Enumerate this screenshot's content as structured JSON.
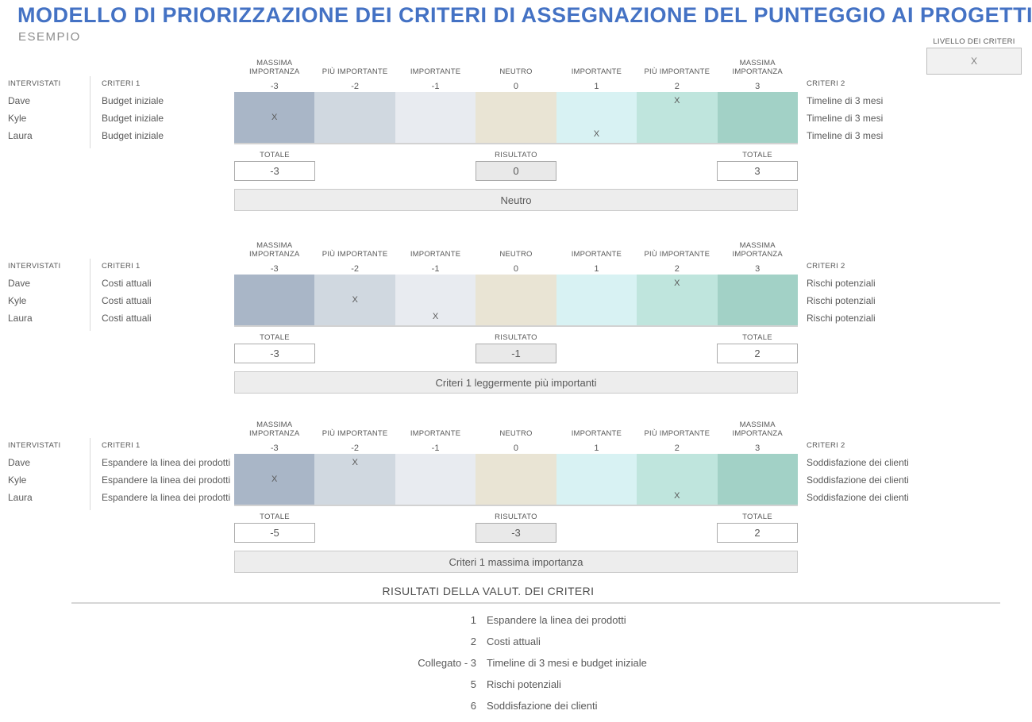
{
  "colors": {
    "accent": "#4472C4",
    "text": "#595959",
    "scale_cells": [
      "#A9B6C7",
      "#D0D8E0",
      "#E8EBF0",
      "#E9E4D4",
      "#D8F2F3",
      "#BFE5DD",
      "#A2D1C6"
    ]
  },
  "header": {
    "title": "MODELLO DI PRIORIZZAZIONE DEI CRITERI DI ASSEGNAZIONE DEL PUNTEGGIO AI PROGETTI",
    "subtitle": "ESEMPIO"
  },
  "criteria_level": {
    "label": "LIVELLO DEI CRITERI",
    "value": "X"
  },
  "scale": {
    "headers": [
      "MASSIMA IMPORTANZA",
      "PIÙ IMPORTANTE",
      "IMPORTANTE",
      "NEUTRO",
      "IMPORTANTE",
      "PIÙ IMPORTANTE",
      "MASSIMA IMPORTANZA"
    ],
    "values": [
      "-3",
      "-2",
      "-1",
      "0",
      "1",
      "2",
      "3"
    ]
  },
  "labels": {
    "interviewees": "INTERVISTATI",
    "criteria1": "CRITERI 1",
    "criteria2": "CRITERI 2",
    "total": "TOTALE",
    "result": "RISULTATO",
    "mark": "X"
  },
  "sections": [
    {
      "rows": [
        {
          "interviewee": "Dave",
          "criteria1": "Budget iniziale",
          "criteria2": "Timeline di 3 mesi",
          "mark_cell": 5
        },
        {
          "interviewee": "Kyle",
          "criteria1": "Budget iniziale",
          "criteria2": "Timeline di 3 mesi",
          "mark_cell": 0
        },
        {
          "interviewee": "Laura",
          "criteria1": "Budget iniziale",
          "criteria2": "Timeline di 3 mesi",
          "mark_cell": 4
        }
      ],
      "total_left": "-3",
      "result": "0",
      "total_right": "3",
      "outcome": "Neutro"
    },
    {
      "rows": [
        {
          "interviewee": "Dave",
          "criteria1": "Costi attuali",
          "criteria2": "Rischi potenziali",
          "mark_cell": 5
        },
        {
          "interviewee": "Kyle",
          "criteria1": "Costi attuali",
          "criteria2": "Rischi potenziali",
          "mark_cell": 1
        },
        {
          "interviewee": "Laura",
          "criteria1": "Costi attuali",
          "criteria2": "Rischi potenziali",
          "mark_cell": 2
        }
      ],
      "total_left": "-3",
      "result": "-1",
      "total_right": "2",
      "outcome": "Criteri 1 leggermente più importanti"
    },
    {
      "rows": [
        {
          "interviewee": "Dave",
          "criteria1": "Espandere la linea dei prodotti",
          "criteria2": "Soddisfazione dei clienti",
          "mark_cell": 1
        },
        {
          "interviewee": "Kyle",
          "criteria1": "Espandere la linea dei prodotti",
          "criteria2": "Soddisfazione dei clienti",
          "mark_cell": 0
        },
        {
          "interviewee": "Laura",
          "criteria1": "Espandere la linea dei prodotti",
          "criteria2": "Soddisfazione dei clienti",
          "mark_cell": 5
        }
      ],
      "total_left": "-5",
      "result": "-3",
      "total_right": "2",
      "outcome": "Criteri 1 massima importanza"
    }
  ],
  "results": {
    "title": "RISULTATI DELLA VALUT. DEI CRITERI",
    "items": [
      {
        "rank": "1",
        "label": "Espandere la linea dei prodotti"
      },
      {
        "rank": "2",
        "label": "Costi attuali"
      },
      {
        "rank": "Collegato - 3",
        "label": "Timeline di 3 mesi e budget iniziale"
      },
      {
        "rank": "5",
        "label": "Rischi potenziali"
      },
      {
        "rank": "6",
        "label": "Soddisfazione dei clienti"
      }
    ]
  }
}
